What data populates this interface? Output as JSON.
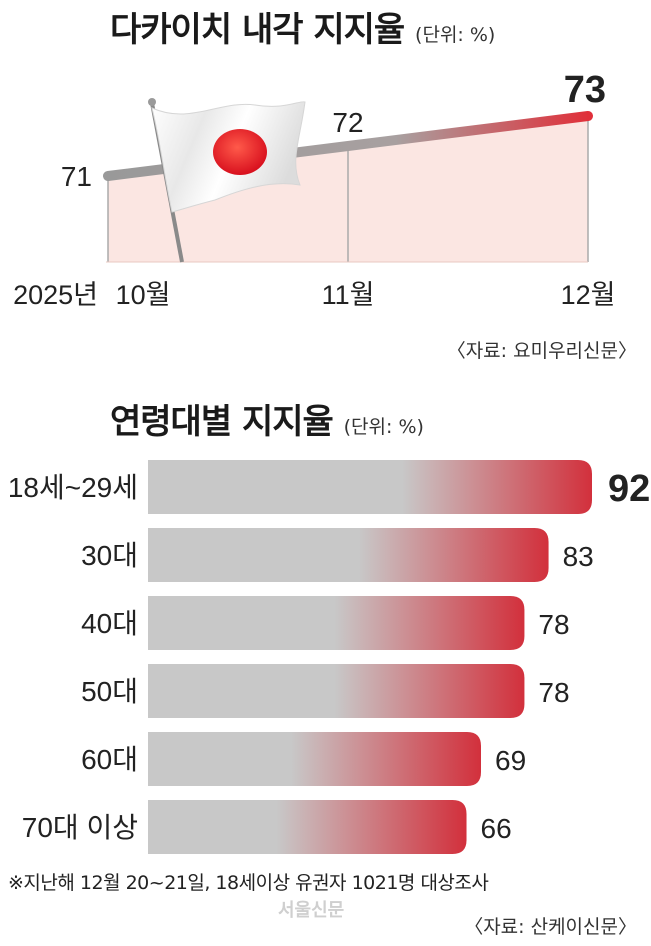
{
  "chart_data": [
    {
      "type": "line",
      "title": "다카이치 내각 지지율",
      "unit": "(단위: %)",
      "year_label": "2025년",
      "categories": [
        "10월",
        "11월",
        "12월"
      ],
      "values": [
        71,
        72,
        73
      ],
      "source": "〈자료: 요미우리신문〉",
      "highlight_color": "#e0303a",
      "line_color": "#999999",
      "fill_color": "#fbe6e2"
    },
    {
      "type": "bar",
      "title": "연령대별 지지율",
      "unit": "(단위: %)",
      "categories": [
        "18세~29세",
        "30대",
        "40대",
        "50대",
        "60대",
        "70대 이상"
      ],
      "values": [
        92,
        83,
        78,
        78,
        69,
        66
      ],
      "source": "〈자료: 산케이신문〉",
      "bar_color": "#c8c8c8",
      "highlight_color": "#d2303c"
    }
  ],
  "footnote": "※지난해 12월 20~21일, 18세이상 유권자 1021명 대상조사",
  "watermark": "서울신문"
}
